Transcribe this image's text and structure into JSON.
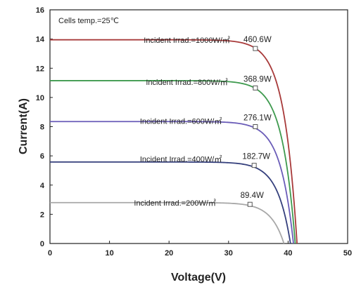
{
  "chart_data": {
    "type": "line",
    "xlabel": "Voltage(V)",
    "ylabel": "Current(A)",
    "xlim": [
      0,
      50
    ],
    "ylim": [
      0,
      16
    ],
    "xticks": [
      0,
      10,
      20,
      30,
      40,
      50
    ],
    "yticks": [
      0,
      2,
      4,
      6,
      8,
      10,
      12,
      14,
      16
    ],
    "grid": false,
    "annotation": "Cells temp.=25℃",
    "series": [
      {
        "name": "Incident Irrad.=1000W/㎡",
        "color": "#a83a3a",
        "isc": 13.95,
        "voc": 41.5,
        "mpp": {
          "x": 34.5,
          "y": 13.35,
          "label": "460.6W"
        }
      },
      {
        "name": "Incident Irrad.=800W/㎡",
        "color": "#3e9a4e",
        "isc": 11.15,
        "voc": 41.2,
        "mpp": {
          "x": 34.5,
          "y": 10.65,
          "label": "368.9W"
        }
      },
      {
        "name": "Incident Irrad.=600W/㎡",
        "color": "#6a5cb8",
        "isc": 8.35,
        "voc": 40.9,
        "mpp": {
          "x": 34.5,
          "y": 8.0,
          "label": "276.1W"
        }
      },
      {
        "name": "Incident Irrad.=400W/㎡",
        "color": "#343f7c",
        "isc": 5.58,
        "voc": 40.4,
        "mpp": {
          "x": 34.3,
          "y": 5.35,
          "label": "182.7W"
        }
      },
      {
        "name": "Incident Irrad.=200W/㎡",
        "color": "#a8a8a8",
        "isc": 2.8,
        "voc": 39.3,
        "mpp": {
          "x": 33.6,
          "y": 2.68,
          "label": "89.4W"
        }
      }
    ]
  }
}
